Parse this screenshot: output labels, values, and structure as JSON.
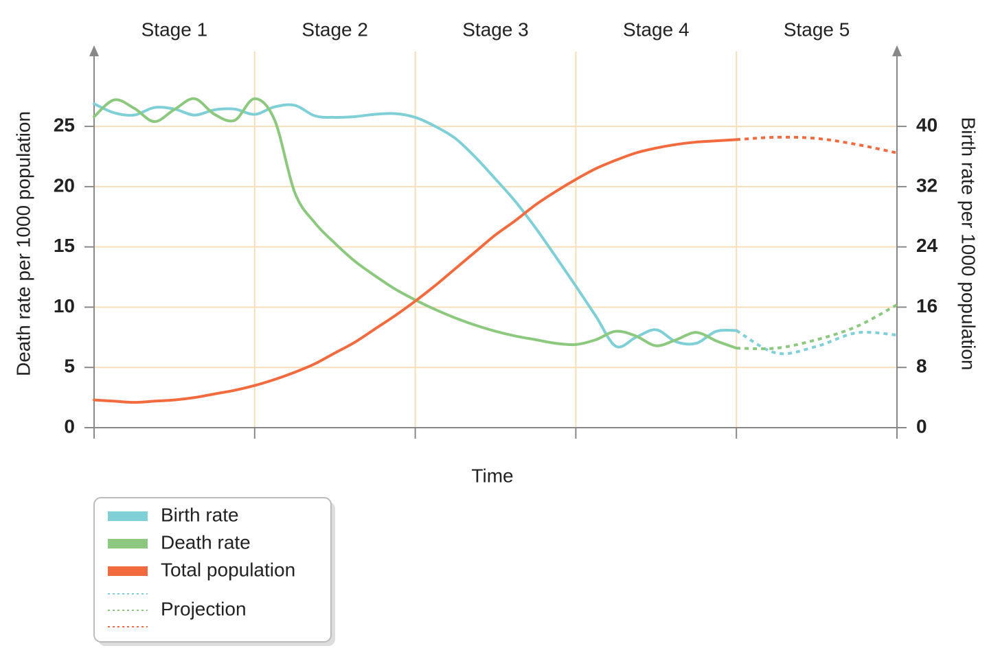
{
  "chart_data": {
    "type": "line",
    "stages": [
      "Stage 1",
      "Stage 2",
      "Stage 3",
      "Stage 4",
      "Stage 5"
    ],
    "x_label": "Time",
    "y_label": "Death rate per 1000 population",
    "y2_label": "Birth rate per 1000 population",
    "xlim": [
      0,
      5
    ],
    "xticks": [
      0,
      1,
      2,
      3,
      4,
      5
    ],
    "ylim": [
      0,
      31.5
    ],
    "yticks": [
      0,
      5,
      10,
      15,
      20,
      25
    ],
    "y2lim": [
      0,
      50.4
    ],
    "y2ticks": [
      0,
      8,
      16,
      24,
      32,
      40
    ],
    "grid": true,
    "legend": "bottom-left",
    "x": [
      0,
      0.125,
      0.25,
      0.375,
      0.5,
      0.625,
      0.75,
      0.875,
      1,
      1.125,
      1.25,
      1.375,
      1.5,
      1.625,
      1.75,
      1.875,
      2,
      2.125,
      2.25,
      2.375,
      2.5,
      2.625,
      2.75,
      2.875,
      3,
      3.125,
      3.25,
      3.375,
      3.5,
      3.625,
      3.75,
      3.875,
      4
    ],
    "series": [
      {
        "name": "Birth rate",
        "color": "#7ecfd6",
        "axis": "y2",
        "values": [
          43,
          41.8,
          41.5,
          42.5,
          42.3,
          41.5,
          42.2,
          42.3,
          41.6,
          42.6,
          42.8,
          41.4,
          41.2,
          41.3,
          41.6,
          41.7,
          41.2,
          40.0,
          38.4,
          35.9,
          33.0,
          30.0,
          26.5,
          22.7,
          18.8,
          14.8,
          10.8,
          12.0,
          13.0,
          11.4,
          11.2,
          12.8,
          12.9
        ]
      },
      {
        "name": "Death rate",
        "color": "#8cc97f",
        "values": [
          25.8,
          27.2,
          26.5,
          25.4,
          26.4,
          27.3,
          26.0,
          25.5,
          27.3,
          25.5,
          19.5,
          17,
          15.3,
          13.8,
          12.6,
          11.5,
          10.6,
          9.8,
          9.1,
          8.5,
          8.0,
          7.6,
          7.3,
          7.0,
          6.9,
          7.3,
          8.0,
          7.6,
          6.8,
          7.3,
          7.9,
          7.2,
          6.6
        ]
      },
      {
        "name": "Total population",
        "color": "#f26b3f",
        "values": [
          2.3,
          2.2,
          2.1,
          2.2,
          2.3,
          2.5,
          2.8,
          3.1,
          3.5,
          4.0,
          4.6,
          5.3,
          6.2,
          7.1,
          8.2,
          9.3,
          10.5,
          11.8,
          13.2,
          14.6,
          16.0,
          17.2,
          18.5,
          19.6,
          20.6,
          21.5,
          22.2,
          22.8,
          23.2,
          23.5,
          23.7,
          23.8,
          23.9
        ]
      }
    ],
    "projection": {
      "name": "Projection",
      "x": [
        4,
        4.25,
        4.5,
        4.75,
        5
      ],
      "series": [
        {
          "color": "#7ecfd6",
          "axis": "y2",
          "values": [
            12.9,
            9.9,
            10.8,
            12.6,
            12.3
          ]
        },
        {
          "color": "#8cc97f",
          "values": [
            6.6,
            6.6,
            7.3,
            8.4,
            10.2
          ]
        },
        {
          "color": "#f26b3f",
          "values": [
            23.9,
            24.1,
            24.0,
            23.5,
            22.8
          ]
        }
      ]
    }
  }
}
